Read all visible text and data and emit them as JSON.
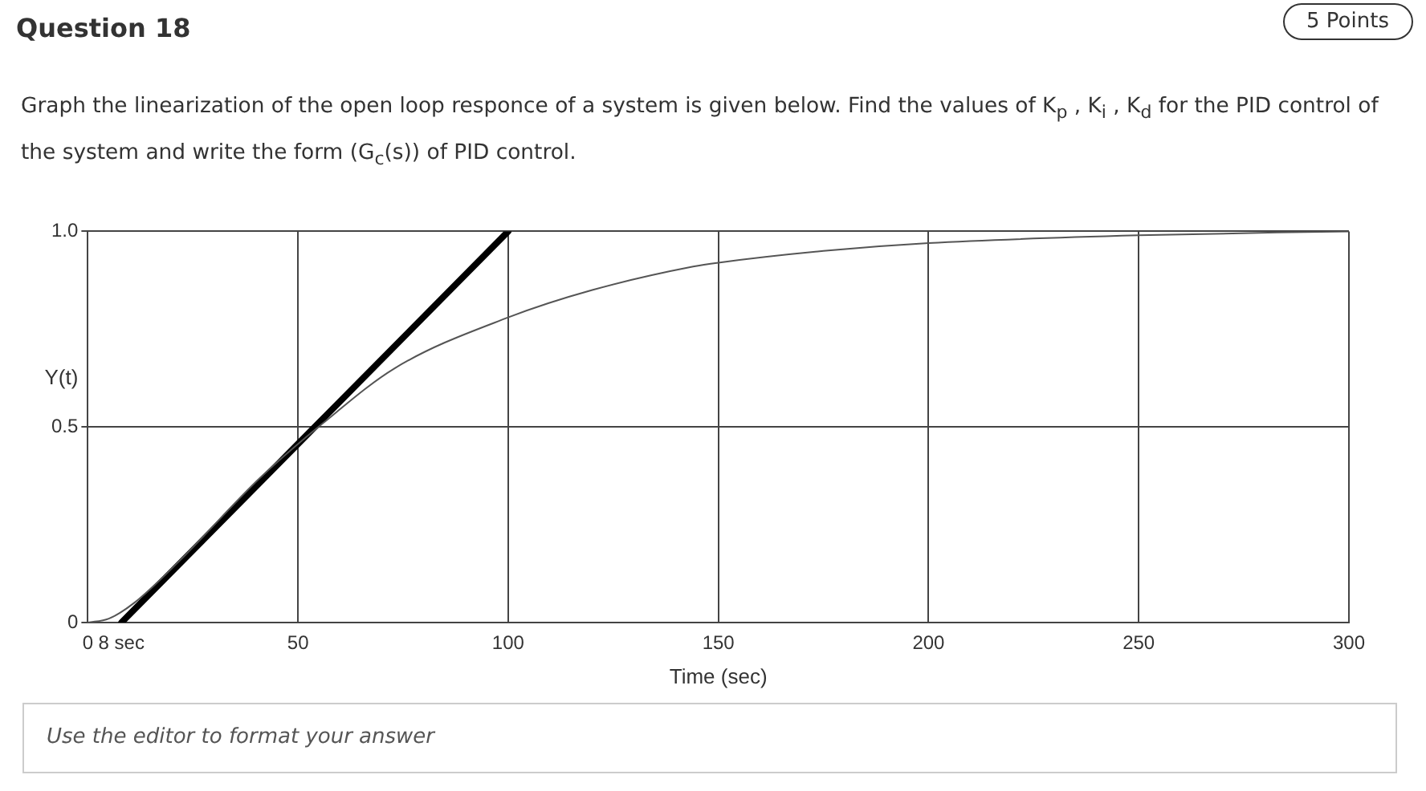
{
  "chart_data": {
    "type": "line",
    "title": "Question 18",
    "subtitle": "Graph the linearization of the open loop responce of a system is given below. Find the values of K$_{p}$ , K$_{i}$ , K$_{d}$ for the PID control of the system and write the form (G$_{c}$(s)) of PID control.",
    "annotations": [
      "5 Points",
      "Use the editor to format your answer"
    ],
    "xlabel": "Time (sec)",
    "ylabel": "Y(t)",
    "series": [
      {
        "color": "#555555",
        "x": [
          0,
          5,
          11,
          22,
          41,
          56,
          73,
          100,
          120,
          144,
          150,
          175,
          200,
          250,
          300
        ],
        "values": [
          0,
          0.01,
          0.05,
          0.16,
          0.37,
          0.51,
          0.65,
          0.78,
          0.85,
          0.91,
          0.92,
          0.95,
          0.97,
          0.99,
          1.0
        ]
      },
      {
        "color": "#000000",
        "x": [
          8,
          100
        ],
        "values": [
          0,
          1.0
        ]
      }
    ],
    "xlim": [
      0,
      300
    ],
    "xticks": [
      0,
      {
        "value": 8,
        "label": "8 sec"
      },
      50,
      100,
      150,
      200,
      250,
      300
    ],
    "ylim": [
      0,
      1.0
    ],
    "yticks": [
      0,
      0.5,
      {
        "value": 1.0,
        "label": "1.0"
      }
    ],
    "grid": true,
    "legend": false,
    "marker": "none"
  }
}
